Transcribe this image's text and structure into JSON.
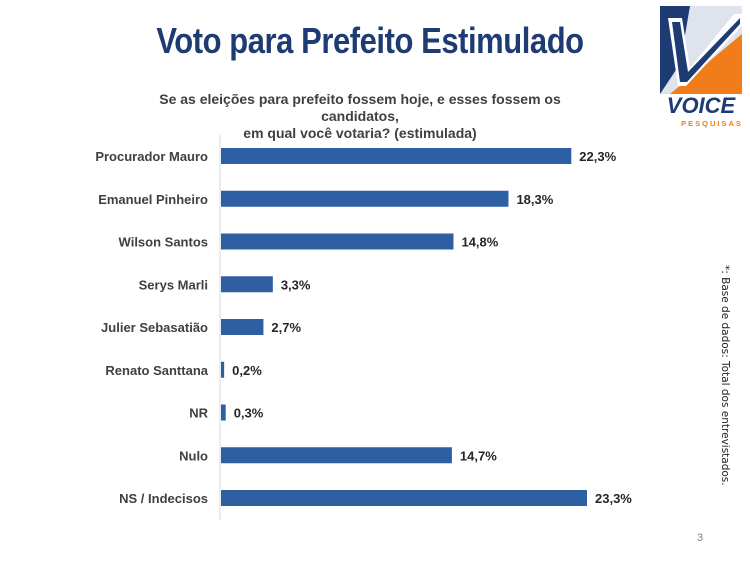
{
  "title": "Voto para Prefeito Estimulado",
  "subtitle_lines": [
    "Se as eleições para prefeito fossem hoje, e esses fossem os candidatos,",
    "em qual você votaria? (estimulada)"
  ],
  "logo": {
    "brand": "VOICE",
    "tagline": "PESQUISAS",
    "colors": {
      "blue": "#1f3b73",
      "orange": "#f07d1a",
      "light": "#dfe3ec"
    }
  },
  "side_note": "*: Base de dados: Total dos entrevistados.",
  "page_number": "3",
  "colors": {
    "bar": "#2e5fa3",
    "title": "#1f3b73",
    "text": "#404040"
  },
  "chart_data": {
    "type": "bar",
    "orientation": "horizontal",
    "categories": [
      "Procurador Mauro",
      "Emanuel Pinheiro",
      "Wilson Santos",
      "Serys Marli",
      "Julier Sebasatião",
      "Renato Santtana",
      "NR",
      "Nulo",
      "NS / Indecisos"
    ],
    "values": [
      22.3,
      18.3,
      14.8,
      3.3,
      2.7,
      0.2,
      0.3,
      14.7,
      23.3
    ],
    "data_labels": [
      "22,3%",
      "18,3%",
      "14,8%",
      "3,3%",
      "2,7%",
      "0,2%",
      "0,3%",
      "14,7%",
      "23,3%"
    ],
    "xlim": [
      0,
      23.3
    ],
    "unit": "%",
    "grid": false,
    "legend": "none"
  }
}
